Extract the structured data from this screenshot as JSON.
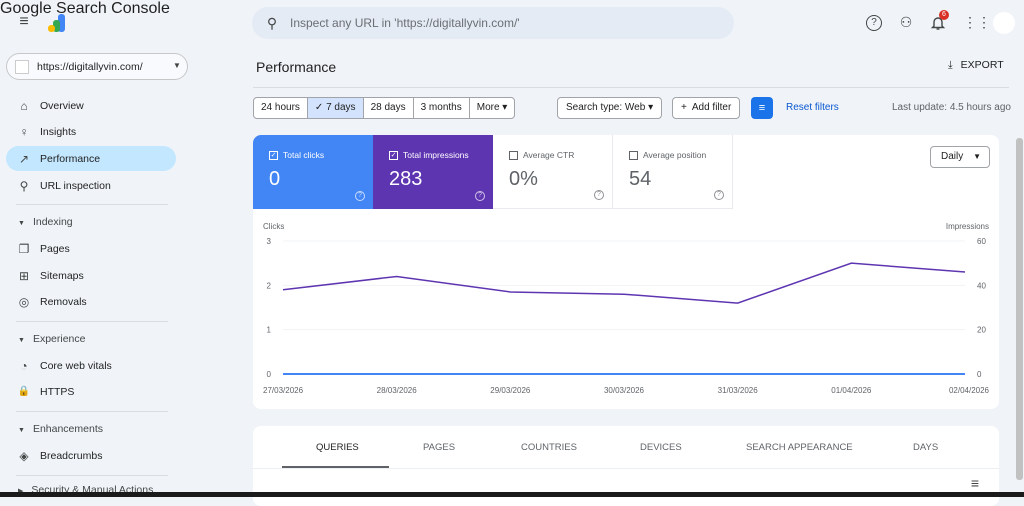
{
  "app": {
    "title": "Google Search Console"
  },
  "search": {
    "placeholder": "Inspect any URL in 'https://digitallyvin.com/'"
  },
  "header_icons": {
    "help": "help-icon",
    "users": "manage-users-icon",
    "notifications": "bell-icon",
    "notification_count": "6",
    "apps": "apps-grid-icon"
  },
  "property": {
    "label": "https://digitallyvin.com/"
  },
  "sidebar": {
    "items": [
      {
        "label": "Overview",
        "icon": "⌂"
      },
      {
        "label": "Insights",
        "icon": "♀"
      },
      {
        "label": "Performance",
        "icon": "↗"
      },
      {
        "label": "URL inspection",
        "icon": "⚲"
      }
    ],
    "indexing": {
      "title": "Indexing",
      "items": [
        {
          "label": "Pages",
          "icon": "❐"
        },
        {
          "label": "Sitemaps",
          "icon": "⊞"
        },
        {
          "label": "Removals",
          "icon": "◎"
        }
      ]
    },
    "experience": {
      "title": "Experience",
      "items": [
        {
          "label": "Core web vitals",
          "icon": "◔"
        },
        {
          "label": "HTTPS",
          "icon": "🔒"
        }
      ]
    },
    "enhancements": {
      "title": "Enhancements",
      "items": [
        {
          "label": "Breadcrumbs",
          "icon": "◈"
        }
      ]
    },
    "security": {
      "title": "Security & Manual Actions"
    }
  },
  "page": {
    "title": "Performance",
    "export": "EXPORT"
  },
  "filters": {
    "ranges": [
      "24 hours",
      "7 days",
      "28 days",
      "3 months",
      "More ▾"
    ],
    "selected": "7 days",
    "search_type": "Search type: Web ▾",
    "add_filter": "Add filter",
    "reset": "Reset filters",
    "last_update": "Last update: 4.5 hours ago"
  },
  "metrics": [
    {
      "label": "Total clicks",
      "value": "0",
      "checked": true,
      "color": "#4285f4"
    },
    {
      "label": "Total impressions",
      "value": "283",
      "checked": true,
      "color": "#5e35b1"
    },
    {
      "label": "Average CTR",
      "value": "0%",
      "checked": false
    },
    {
      "label": "Average position",
      "value": "54",
      "checked": false
    }
  ],
  "granularity": "Daily",
  "chart_data": {
    "type": "line",
    "x": [
      "27/03/2026",
      "28/03/2026",
      "29/03/2026",
      "30/03/2026",
      "31/03/2026",
      "01/04/2026",
      "02/04/2026"
    ],
    "left_axis": {
      "label": "Clicks",
      "range": [
        0,
        3
      ],
      "ticks": [
        "0",
        "1",
        "2",
        "3"
      ]
    },
    "right_axis": {
      "label": "Impressions",
      "range": [
        0,
        60
      ],
      "ticks": [
        "0",
        "20",
        "40",
        "60"
      ]
    },
    "series": [
      {
        "name": "Clicks",
        "axis": "left",
        "color": "#4285f4",
        "values": [
          0,
          0,
          0,
          0,
          0,
          0,
          0
        ]
      },
      {
        "name": "Impressions",
        "axis": "right",
        "color": "#5e35b1",
        "values": [
          38,
          44,
          37,
          36,
          32,
          50,
          46
        ]
      }
    ],
    "grid": true
  },
  "tabs": [
    "QUERIES",
    "PAGES",
    "COUNTRIES",
    "DEVICES",
    "SEARCH APPEARANCE",
    "DAYS"
  ]
}
